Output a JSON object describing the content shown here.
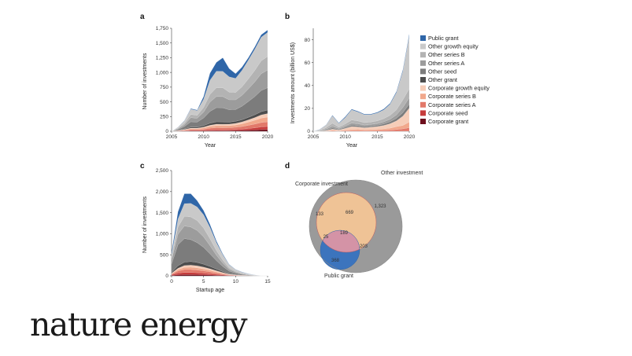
{
  "brand": {
    "name": "nature energy"
  },
  "colors": {
    "Public grant": "#2f66a8",
    "Other growth equity": "#c9c9c9",
    "Other series B": "#b3b3b3",
    "Other series A": "#9c9c9c",
    "Other seed": "#7c7c7c",
    "Other grant": "#4d4d4d",
    "Corporate growth equity": "#f6cdb8",
    "Corporate series B": "#f1a88c",
    "Corporate series A": "#e2796a",
    "Corporate seed": "#c63b3b",
    "Corporate grant": "#6e0f1d",
    "venn_public": "#3d74bd",
    "venn_other": "#9a9a9a",
    "venn_corporate": "#e0707a",
    "venn_corp_other": "#efc396",
    "venn_all": "#c9b6d2"
  },
  "chart_data": [
    {
      "panel": "a",
      "type": "area",
      "stacked": true,
      "xlabel": "Year",
      "ylabel": "Number of investments",
      "xlim": [
        2005,
        2020
      ],
      "ylim": [
        0,
        1750
      ],
      "xticks": [
        2005,
        2010,
        2015,
        2020
      ],
      "yticks": [
        0,
        250,
        500,
        750,
        1000,
        1250,
        1500,
        1750
      ],
      "ytick_labels": [
        "0",
        "250",
        "500",
        "750",
        "1,000",
        "1,250",
        "1,500",
        "1,750"
      ],
      "x": [
        2005,
        2006,
        2007,
        2008,
        2009,
        2010,
        2011,
        2012,
        2013,
        2014,
        2015,
        2016,
        2017,
        2018,
        2019,
        2020
      ],
      "series": [
        {
          "name": "Corporate grant",
          "values": [
            0,
            2,
            3,
            5,
            5,
            6,
            8,
            9,
            9,
            10,
            12,
            14,
            18,
            22,
            28,
            30
          ]
        },
        {
          "name": "Corporate seed",
          "values": [
            0,
            2,
            5,
            8,
            8,
            10,
            14,
            16,
            15,
            15,
            18,
            22,
            28,
            35,
            45,
            50
          ]
        },
        {
          "name": "Corporate series A",
          "values": [
            0,
            3,
            8,
            15,
            15,
            20,
            30,
            35,
            35,
            35,
            38,
            45,
            55,
            65,
            75,
            80
          ]
        },
        {
          "name": "Corporate series B",
          "values": [
            0,
            3,
            8,
            15,
            15,
            20,
            30,
            35,
            35,
            35,
            38,
            45,
            55,
            65,
            75,
            80
          ]
        },
        {
          "name": "Corporate growth equity",
          "values": [
            0,
            2,
            6,
            10,
            10,
            14,
            20,
            25,
            25,
            25,
            28,
            32,
            38,
            45,
            55,
            60
          ]
        },
        {
          "name": "Other grant",
          "values": [
            0,
            4,
            10,
            18,
            18,
            25,
            35,
            40,
            40,
            35,
            35,
            38,
            42,
            48,
            55,
            60
          ]
        },
        {
          "name": "Other seed",
          "values": [
            0,
            15,
            40,
            90,
            85,
            130,
            200,
            240,
            240,
            210,
            200,
            230,
            270,
            310,
            360,
            380
          ]
        },
        {
          "name": "Other series A",
          "values": [
            0,
            12,
            30,
            70,
            65,
            100,
            160,
            190,
            190,
            170,
            165,
            185,
            215,
            250,
            285,
            300
          ]
        },
        {
          "name": "Other series B",
          "values": [
            0,
            10,
            25,
            55,
            50,
            80,
            130,
            150,
            150,
            130,
            125,
            145,
            170,
            195,
            220,
            230
          ]
        },
        {
          "name": "Other growth equity",
          "values": [
            0,
            15,
            40,
            90,
            80,
            140,
            240,
            280,
            280,
            260,
            240,
            280,
            320,
            360,
            400,
            410
          ]
        },
        {
          "name": "Public grant",
          "values": [
            0,
            2,
            5,
            9,
            9,
            45,
            120,
            150,
            230,
            140,
            80,
            54,
            40,
            40,
            42,
            40
          ]
        }
      ]
    },
    {
      "panel": "b",
      "type": "area",
      "stacked": true,
      "xlabel": "Year",
      "ylabel": "Investments amount (billion US$)",
      "xlim": [
        2005,
        2020
      ],
      "ylim": [
        0,
        90
      ],
      "xticks": [
        2005,
        2010,
        2015,
        2020
      ],
      "yticks": [
        0,
        20,
        40,
        60,
        80
      ],
      "ytick_labels": [
        "0",
        "20",
        "40",
        "60",
        "80"
      ],
      "x": [
        2005,
        2006,
        2007,
        2008,
        2009,
        2010,
        2011,
        2012,
        2013,
        2014,
        2015,
        2016,
        2017,
        2018,
        2019,
        2020
      ],
      "series": [
        {
          "name": "Corporate grant",
          "values": [
            0,
            0,
            0,
            0,
            0,
            0,
            0,
            0,
            0,
            0,
            0,
            0,
            0,
            0,
            0,
            0
          ]
        },
        {
          "name": "Corporate seed",
          "values": [
            0,
            0,
            0,
            0,
            0,
            0,
            0,
            0,
            0,
            0,
            0,
            0,
            0,
            0,
            0.1,
            0.1
          ]
        },
        {
          "name": "Corporate series A",
          "values": [
            0,
            0,
            0.1,
            0.3,
            0.2,
            0.4,
            0.5,
            0.6,
            0.5,
            0.5,
            0.6,
            0.8,
            1,
            1.5,
            2,
            3
          ]
        },
        {
          "name": "Corporate series B",
          "values": [
            0,
            0,
            0.2,
            0.5,
            0.3,
            0.6,
            1,
            1.1,
            0.8,
            0.9,
            1,
            1.3,
            1.7,
            2.5,
            3,
            5
          ]
        },
        {
          "name": "Corporate growth equity",
          "values": [
            0,
            0,
            0.3,
            1,
            0.5,
            1.5,
            2.5,
            2,
            1.7,
            2.1,
            2.4,
            2.9,
            3.8,
            5,
            8,
            12
          ]
        },
        {
          "name": "Other grant",
          "values": [
            0,
            0,
            0,
            0.1,
            0,
            0.1,
            0.1,
            0.1,
            0.1,
            0.1,
            0.1,
            0.1,
            0.1,
            0.1,
            0.2,
            0.2
          ]
        },
        {
          "name": "Other seed",
          "values": [
            0,
            0.2,
            0.5,
            1,
            0.6,
            0.8,
            1.2,
            1.1,
            0.9,
            1,
            1.1,
            1.3,
            1.7,
            2.2,
            3,
            3.5
          ]
        },
        {
          "name": "Other series A",
          "values": [
            0,
            0.3,
            0.8,
            1.6,
            0.8,
            1.2,
            1.8,
            1.6,
            1.4,
            1.4,
            1.5,
            1.8,
            2.2,
            3,
            4.5,
            5.5
          ]
        },
        {
          "name": "Other series B",
          "values": [
            0,
            0.4,
            1.2,
            2.5,
            1.2,
            1.8,
            2.8,
            2.5,
            2.2,
            2.1,
            2.4,
            2.8,
            3.4,
            4.5,
            6.7,
            8
          ]
        },
        {
          "name": "Other growth equity",
          "values": [
            0,
            0.6,
            2.3,
            6.5,
            3.3,
            5.5,
            8.8,
            7.8,
            6.8,
            6.4,
            6.9,
            7.6,
            9.7,
            15,
            25,
            46
          ]
        },
        {
          "name": "Public grant",
          "values": [
            0,
            0.1,
            0.2,
            0.5,
            0.4,
            0.8,
            0.6,
            0.6,
            0.5,
            0.5,
            0.6,
            0.8,
            0.8,
            1,
            1.3,
            1.7
          ]
        }
      ]
    },
    {
      "panel": "c",
      "type": "area",
      "stacked": true,
      "xlabel": "Startup age",
      "ylabel": "Number of investments",
      "xlim": [
        0,
        15
      ],
      "ylim": [
        0,
        2500
      ],
      "xticks": [
        0,
        5,
        10,
        15
      ],
      "yticks": [
        0,
        500,
        1000,
        1500,
        2000,
        2500
      ],
      "ytick_labels": [
        "0",
        "500",
        "1,000",
        "1,500",
        "2,000",
        "2,500"
      ],
      "x": [
        0,
        1,
        2,
        3,
        4,
        5,
        6,
        7,
        8,
        9,
        10,
        11,
        12,
        13,
        14,
        15
      ],
      "series": [
        {
          "name": "Corporate grant",
          "values": [
            10,
            25,
            30,
            30,
            28,
            25,
            20,
            15,
            10,
            5,
            3,
            2,
            1,
            0,
            0,
            0
          ]
        },
        {
          "name": "Corporate seed",
          "values": [
            15,
            40,
            50,
            50,
            45,
            38,
            30,
            20,
            12,
            6,
            4,
            2,
            1,
            0,
            0,
            0
          ]
        },
        {
          "name": "Corporate series A",
          "values": [
            15,
            50,
            70,
            70,
            65,
            55,
            45,
            32,
            20,
            10,
            6,
            3,
            2,
            1,
            0,
            0
          ]
        },
        {
          "name": "Corporate series B",
          "values": [
            10,
            35,
            50,
            55,
            52,
            46,
            38,
            28,
            18,
            9,
            5,
            3,
            2,
            1,
            0,
            0
          ]
        },
        {
          "name": "Corporate growth equity",
          "values": [
            10,
            30,
            45,
            50,
            48,
            43,
            35,
            27,
            18,
            10,
            6,
            3,
            2,
            1,
            0,
            0
          ]
        },
        {
          "name": "Other grant",
          "values": [
            20,
            60,
            80,
            85,
            80,
            70,
            55,
            40,
            25,
            13,
            7,
            4,
            2,
            1,
            0,
            0
          ]
        },
        {
          "name": "Other seed",
          "values": [
            200,
            500,
            560,
            520,
            470,
            400,
            300,
            200,
            120,
            60,
            35,
            18,
            9,
            4,
            1,
            0
          ]
        },
        {
          "name": "Other series A",
          "values": [
            100,
            250,
            300,
            300,
            290,
            250,
            195,
            130,
            80,
            40,
            24,
            13,
            7,
            3,
            1,
            0
          ]
        },
        {
          "name": "Other series B",
          "values": [
            60,
            170,
            230,
            240,
            235,
            210,
            165,
            110,
            70,
            36,
            20,
            11,
            6,
            2,
            1,
            0
          ]
        },
        {
          "name": "Other growth equity",
          "values": [
            60,
            190,
            300,
            320,
            322,
            313,
            267,
            188,
            127,
            71,
            40,
            25,
            13,
            6,
            2,
            0
          ]
        },
        {
          "name": "Public grant",
          "values": [
            50,
            170,
            235,
            230,
            150,
            100,
            70,
            40,
            20,
            10,
            5,
            6,
            5,
            1,
            0,
            0
          ]
        }
      ]
    },
    {
      "panel": "d",
      "type": "venn",
      "sets": [
        "Corporate investment",
        "Other investment",
        "Public grant"
      ],
      "regions": [
        {
          "sets": [
            "Corporate investment"
          ],
          "value": "133"
        },
        {
          "sets": [
            "Other investment"
          ],
          "value": "1,323"
        },
        {
          "sets": [
            "Public grant"
          ],
          "value": "368"
        },
        {
          "sets": [
            "Corporate investment",
            "Other investment"
          ],
          "value": "669"
        },
        {
          "sets": [
            "Corporate investment",
            "Public grant"
          ],
          "value": "25"
        },
        {
          "sets": [
            "Other investment",
            "Public grant"
          ],
          "value": "203"
        },
        {
          "sets": [
            "Corporate investment",
            "Other investment",
            "Public grant"
          ],
          "value": "189"
        }
      ]
    }
  ],
  "legend": [
    "Public grant",
    "Other growth equity",
    "Other series B",
    "Other series A",
    "Other seed",
    "Other grant",
    "Corporate growth equity",
    "Corporate series B",
    "Corporate series A",
    "Corporate seed",
    "Corporate grant"
  ]
}
